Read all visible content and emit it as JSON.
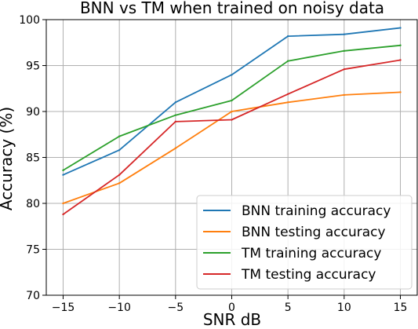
{
  "chart_data": {
    "type": "line",
    "title": "BNN vs TM when trained on noisy data",
    "xlabel": "SNR dB",
    "ylabel": "Accuracy (%)",
    "x": [
      -15,
      -10,
      -5,
      0,
      5,
      10,
      15
    ],
    "x_ticks": [
      -15,
      -10,
      -5,
      0,
      5,
      10,
      15
    ],
    "x_tick_labels": [
      "−15",
      "−10",
      "−5",
      "0",
      "5",
      "10",
      "15"
    ],
    "y_ticks": [
      70,
      75,
      80,
      85,
      90,
      95,
      100
    ],
    "y_tick_labels": [
      "70",
      "75",
      "80",
      "85",
      "90",
      "95",
      "100"
    ],
    "xlim": [
      -16.5,
      16.5
    ],
    "ylim": [
      70,
      100
    ],
    "grid": true,
    "legend_position": "bottom-right",
    "series": [
      {
        "name": "BNN training accuracy",
        "color": "#1f77b4",
        "values": [
          83.1,
          85.8,
          91.0,
          94.0,
          98.2,
          98.4,
          99.1
        ]
      },
      {
        "name": "BNN testing accuracy",
        "color": "#ff7f0e",
        "values": [
          80.0,
          82.2,
          86.0,
          90.0,
          91.0,
          91.8,
          92.1
        ]
      },
      {
        "name": "TM training accuracy",
        "color": "#2ca02c",
        "values": [
          83.6,
          87.3,
          89.6,
          91.2,
          95.5,
          96.6,
          97.2
        ]
      },
      {
        "name": "TM testing accuracy",
        "color": "#d62728",
        "values": [
          78.8,
          83.1,
          88.9,
          89.1,
          91.9,
          94.6,
          95.6
        ]
      }
    ]
  }
}
